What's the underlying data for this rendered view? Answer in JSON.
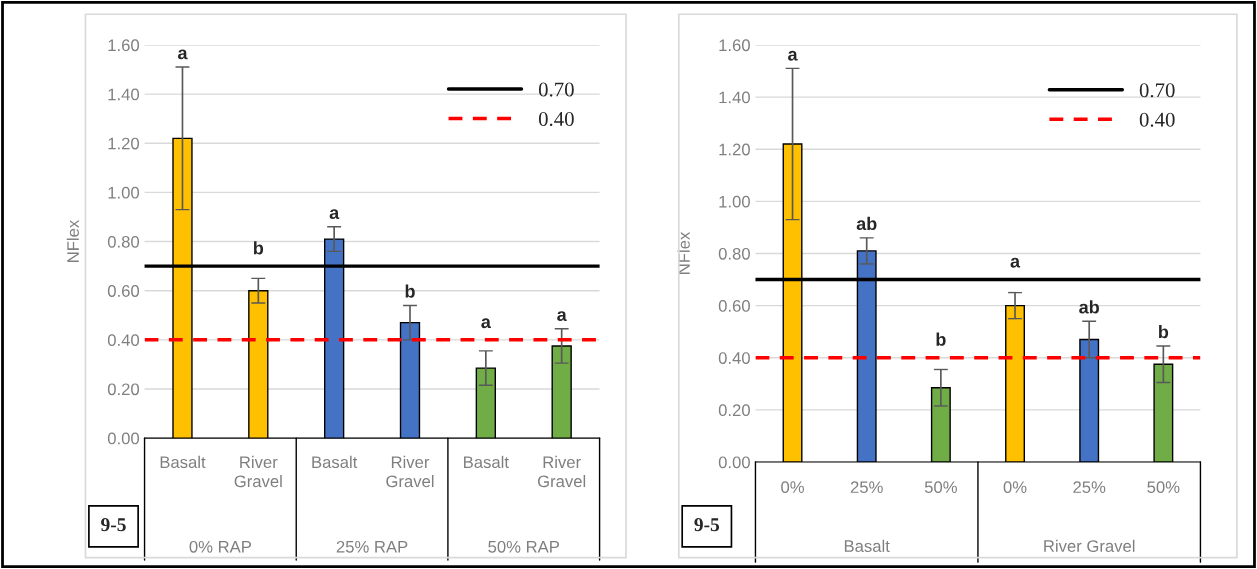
{
  "chart_data": [
    {
      "type": "bar",
      "ylabel": "NFlex",
      "categories": [
        "Basalt",
        "River Gravel",
        "Basalt",
        "River Gravel",
        "Basalt",
        "River Gravel"
      ],
      "values": [
        1.22,
        0.6,
        0.81,
        0.47,
        0.285,
        0.375
      ],
      "errors": [
        0.29,
        0.05,
        0.05,
        0.07,
        0.07,
        0.07
      ],
      "colors": [
        "#ffc000",
        "#ffc000",
        "#4472c4",
        "#4472c4",
        "#70ad47",
        "#70ad47"
      ],
      "ylim": [
        0,
        1.6
      ],
      "yticks": [
        {
          "value": 0,
          "label": "0.00"
        },
        {
          "value": 0.2,
          "label": "0.20"
        },
        {
          "value": 0.4,
          "label": "0.40"
        },
        {
          "value": 0.6,
          "label": "0.60"
        },
        {
          "value": 0.8,
          "label": "0.80"
        },
        {
          "value": 1.0,
          "label": "1.00"
        },
        {
          "value": 1.2,
          "label": "1.20"
        },
        {
          "value": 1.4,
          "label": "1.40"
        },
        {
          "value": 1.6,
          "label": "1.60"
        }
      ],
      "grid": "y",
      "legend": "top right",
      "ref_lines": [
        {
          "axis": "y",
          "value": 0.7,
          "label": "0.70",
          "color": "#000000",
          "line_style": "solid"
        },
        {
          "axis": "y",
          "value": 0.4,
          "label": "0.40",
          "color": "#ff0000",
          "line_style": "dashed"
        }
      ],
      "annotations": [
        "a",
        "b",
        "a",
        "b",
        "a",
        "a",
        "0% RAP",
        "25% RAP",
        "50% RAP",
        "9-5"
      ]
    },
    {
      "type": "bar",
      "ylabel": "NFlex",
      "categories": [
        "0%",
        "25%",
        "50%",
        "0%",
        "25%",
        "50%"
      ],
      "values": [
        1.22,
        0.81,
        0.285,
        0.6,
        0.47,
        0.375
      ],
      "errors": [
        0.29,
        0.05,
        0.07,
        0.05,
        0.07,
        0.07
      ],
      "colors": [
        "#ffc000",
        "#4472c4",
        "#70ad47",
        "#ffc000",
        "#4472c4",
        "#70ad47"
      ],
      "ylim": [
        0,
        1.6
      ],
      "yticks": [
        {
          "value": 0,
          "label": "0.00"
        },
        {
          "value": 0.2,
          "label": "0.20"
        },
        {
          "value": 0.4,
          "label": "0.40"
        },
        {
          "value": 0.6,
          "label": "0.60"
        },
        {
          "value": 0.8,
          "label": "0.80"
        },
        {
          "value": 1.0,
          "label": "1.00"
        },
        {
          "value": 1.2,
          "label": "1.20"
        },
        {
          "value": 1.4,
          "label": "1.40"
        },
        {
          "value": 1.6,
          "label": "1.60"
        }
      ],
      "grid": "y",
      "legend": "top right",
      "ref_lines": [
        {
          "axis": "y",
          "value": 0.7,
          "label": "0.70",
          "color": "#000000",
          "line_style": "solid"
        },
        {
          "axis": "y",
          "value": 0.4,
          "label": "0.40",
          "color": "#ff0000",
          "line_style": "dashed"
        }
      ],
      "annotations": [
        "a",
        "ab",
        "b",
        "a",
        "ab",
        "b",
        "Basalt",
        "River Gravel",
        "9-5"
      ]
    }
  ]
}
